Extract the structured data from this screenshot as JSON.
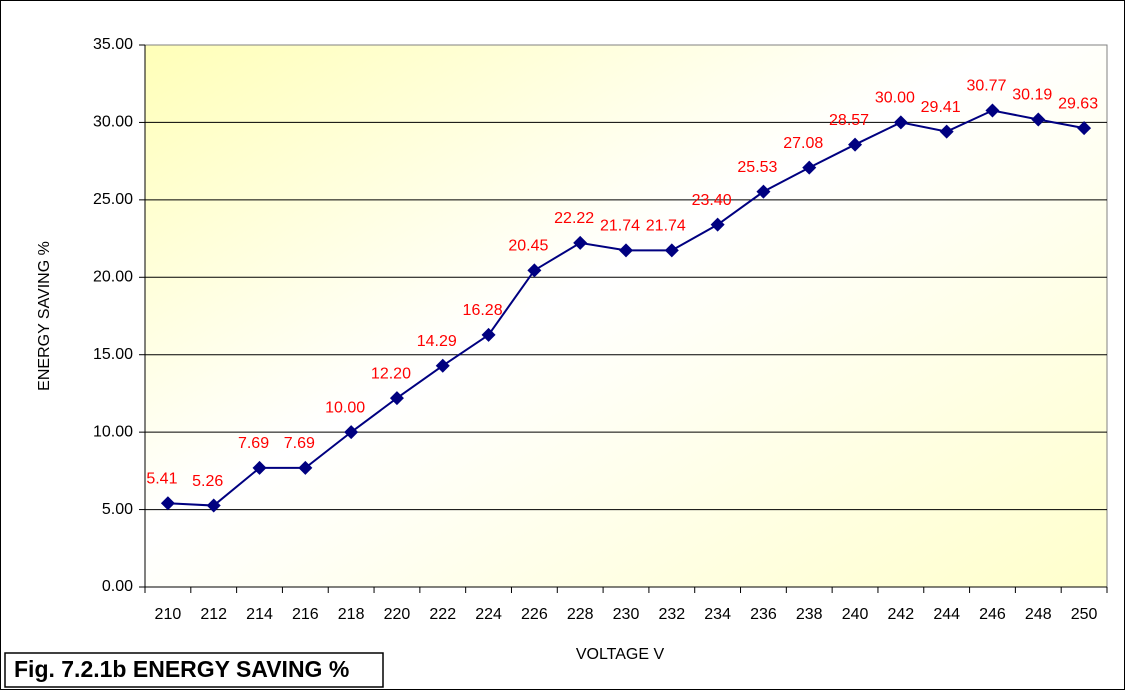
{
  "chart_data": {
    "type": "line",
    "title": "Fig. 7.2.1b ENERGY SAVING %",
    "x_label": "VOLTAGE  V",
    "y_label": "ENERGY SAVING %",
    "categories": [
      "210",
      "212",
      "214",
      "216",
      "218",
      "220",
      "222",
      "224",
      "226",
      "228",
      "230",
      "232",
      "234",
      "236",
      "238",
      "240",
      "242",
      "244",
      "246",
      "248",
      "250"
    ],
    "values": [
      5.41,
      5.26,
      7.69,
      7.69,
      10.0,
      12.2,
      14.29,
      16.28,
      20.45,
      22.22,
      21.74,
      21.74,
      23.4,
      25.53,
      27.08,
      28.57,
      30.0,
      29.41,
      30.77,
      30.19,
      29.63
    ],
    "value_labels": [
      "5.41",
      "5.26",
      "7.69",
      "7.69",
      "10.00",
      "12.20",
      "14.29",
      "16.28",
      "20.45",
      "22.22",
      "21.74",
      "21.74",
      "23.40",
      "25.53",
      "27.08",
      "28.57",
      "30.00",
      "29.41",
      "30.77",
      "30.19",
      "29.63"
    ],
    "color": "#000080",
    "label_color": "#ff0000",
    "ylim": [
      0,
      35
    ],
    "yticks": [
      {
        "value": 0,
        "label": "0.00"
      },
      {
        "value": 5,
        "label": "5.00"
      },
      {
        "value": 10,
        "label": "10.00"
      },
      {
        "value": 15,
        "label": "15.00"
      },
      {
        "value": 20,
        "label": "20.00"
      },
      {
        "value": 25,
        "label": "25.00"
      },
      {
        "value": 30,
        "label": "30.00"
      },
      {
        "value": 35,
        "label": "35.00"
      }
    ],
    "grid": true
  }
}
